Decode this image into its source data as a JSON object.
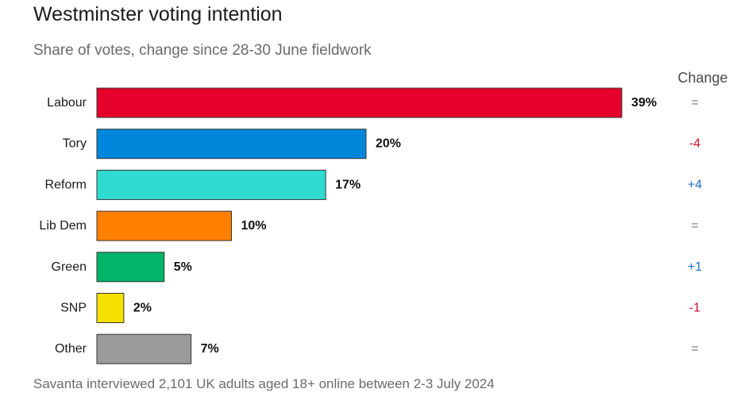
{
  "header": {
    "title": "Westminster voting intention",
    "subtitle": "Share of votes, change since 28-30 June fieldwork",
    "change_column_label": "Change"
  },
  "footnote": "Savanta interviewed 2,101 UK adults aged 18+ online between 2-3 July 2024",
  "chart_data": {
    "type": "bar",
    "orientation": "horizontal",
    "title": "Westminster voting intention",
    "subtitle": "Share of votes, change since 28-30 June fieldwork",
    "categories": [
      "Labour",
      "Tory",
      "Reform",
      "Lib Dem",
      "Green",
      "SNP",
      "Other"
    ],
    "values": [
      39,
      20,
      17,
      10,
      5,
      2,
      7
    ],
    "value_labels": [
      "39%",
      "20%",
      "17%",
      "10%",
      "5%",
      "2%",
      "7%"
    ],
    "bar_colors": [
      "#e4002b",
      "#0087dc",
      "#2fdbd1",
      "#ff8000",
      "#00b56a",
      "#f4e100",
      "#9a9a9a"
    ],
    "change": [
      "=",
      "-4",
      "+4",
      "=",
      "+1",
      "-1",
      "="
    ],
    "change_colors": [
      "#777777",
      "#c8102e",
      "#1f6fd0",
      "#777777",
      "#1f6fd0",
      "#c8102e",
      "#777777"
    ],
    "xlim": [
      0,
      39
    ],
    "grid": false,
    "legend": "none"
  }
}
